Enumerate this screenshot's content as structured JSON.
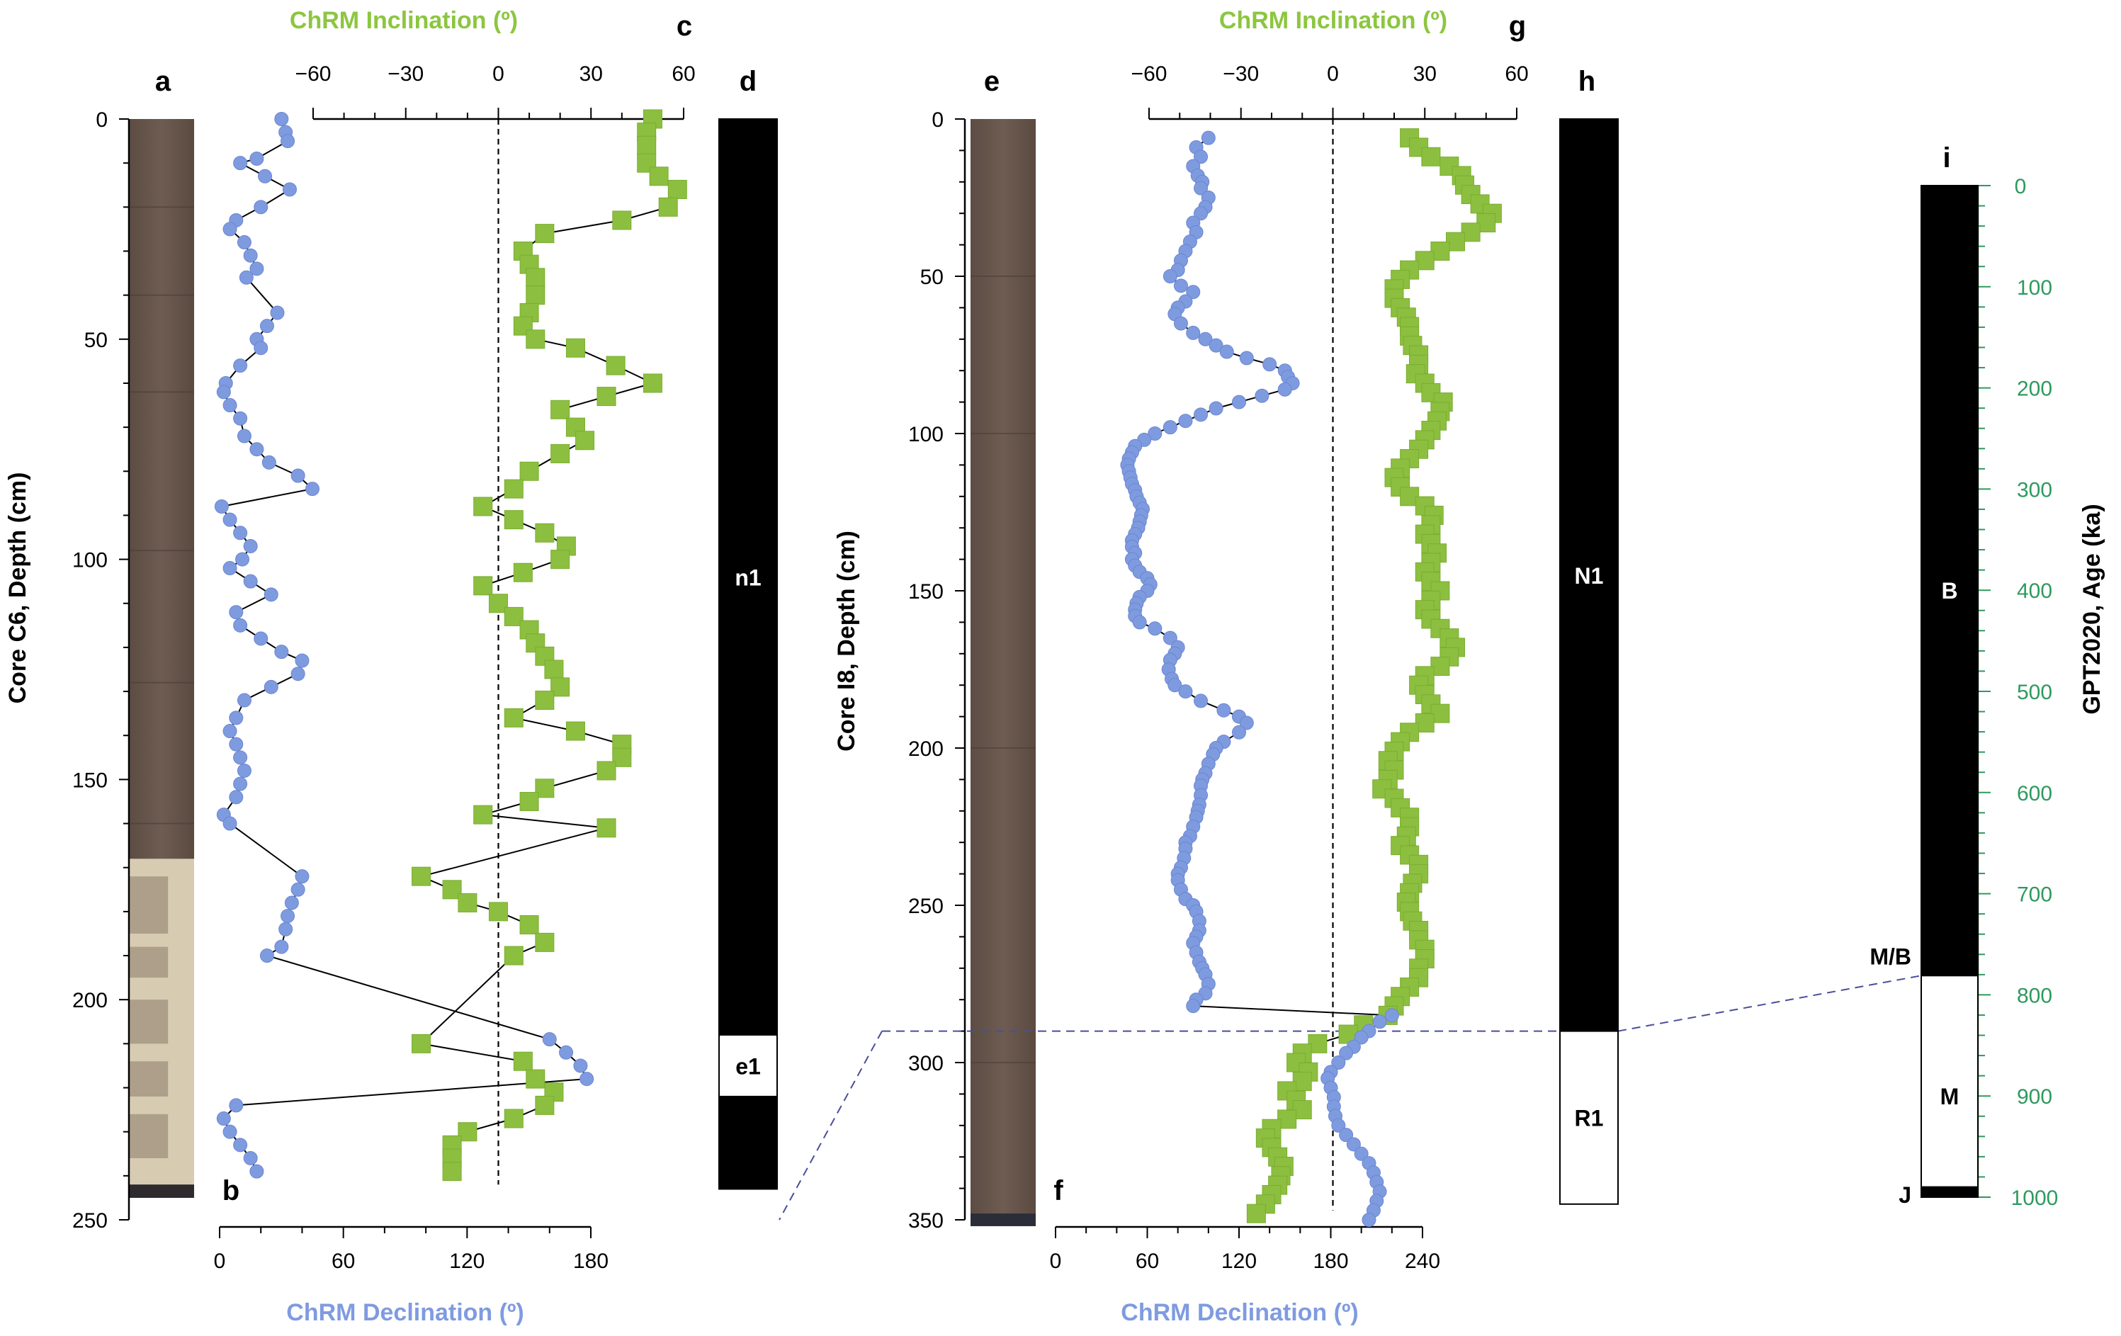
{
  "colors": {
    "declination": "#7f9be0",
    "inclination": "#8cbf3f",
    "inclination_title": "#8cc63f",
    "declination_title": "#7f9be0",
    "age_axis": "#2e9a5e",
    "polarity_normal": "#000000",
    "polarity_reversed": "#ffffff",
    "core_photo": "#6e5c52",
    "core_photo_light": "#d7ccb2",
    "tie_line": "#4a4e9a"
  },
  "panel_labels": {
    "a": "a",
    "b": "b",
    "c": "c",
    "d": "d",
    "e": "e",
    "f": "f",
    "g": "g",
    "h": "h",
    "i": "i"
  },
  "chart_data": [
    {
      "id": "core_c6",
      "type": "scatter",
      "ylabel": "Core C6, Depth (cm)",
      "ylim": [
        0,
        250
      ],
      "yticks": [
        0,
        50,
        100,
        150,
        200,
        250
      ],
      "declination": {
        "xlabel": "ChRM Declination (º)",
        "xlim": [
          0,
          180
        ],
        "xticks": [
          0,
          60,
          120,
          180
        ],
        "depth": [
          0,
          3,
          5,
          9,
          10,
          13,
          16,
          20,
          23,
          25,
          28,
          31,
          34,
          36,
          44,
          47,
          50,
          52,
          56,
          60,
          62,
          65,
          68,
          72,
          75,
          78,
          81,
          84,
          88,
          91,
          94,
          97,
          100,
          102,
          105,
          108,
          112,
          115,
          118,
          121,
          123,
          126,
          129,
          132,
          136,
          139,
          142,
          145,
          148,
          151,
          154,
          158,
          160,
          172,
          175,
          178,
          181,
          184,
          188,
          190,
          209,
          212,
          215,
          218,
          224,
          227,
          230,
          233,
          236,
          239
        ],
        "values": [
          30,
          32,
          33,
          18,
          10,
          22,
          34,
          20,
          8,
          5,
          12,
          15,
          18,
          13,
          28,
          23,
          18,
          20,
          10,
          3,
          2,
          5,
          10,
          12,
          18,
          24,
          38,
          45,
          1,
          5,
          10,
          15,
          11,
          5,
          15,
          25,
          8,
          10,
          20,
          30,
          40,
          38,
          25,
          12,
          8,
          5,
          8,
          10,
          12,
          10,
          8,
          2,
          5,
          40,
          38,
          35,
          33,
          32,
          30,
          23,
          160,
          168,
          175,
          178,
          8,
          2,
          5,
          10,
          15,
          18
        ]
      },
      "inclination": {
        "xlabel": "ChRM Inclination (º)",
        "xlim": [
          -60,
          60
        ],
        "xticks": [
          -60,
          -30,
          0,
          30,
          60
        ],
        "depth": [
          0,
          3,
          6,
          10,
          13,
          16,
          20,
          23,
          26,
          30,
          33,
          36,
          40,
          44,
          47,
          50,
          52,
          56,
          60,
          63,
          66,
          70,
          73,
          76,
          80,
          84,
          88,
          91,
          94,
          97,
          100,
          103,
          106,
          110,
          113,
          116,
          119,
          122,
          125,
          129,
          132,
          136,
          139,
          142,
          145,
          148,
          152,
          155,
          158,
          161,
          172,
          175,
          178,
          180,
          183,
          187,
          190,
          210,
          214,
          218,
          221,
          224,
          227,
          230,
          233,
          236,
          239
        ],
        "values": [
          50,
          48,
          48,
          48,
          52,
          58,
          55,
          40,
          15,
          8,
          10,
          12,
          12,
          10,
          8,
          12,
          25,
          38,
          50,
          35,
          20,
          25,
          28,
          20,
          10,
          5,
          -5,
          5,
          15,
          22,
          20,
          8,
          -5,
          0,
          5,
          10,
          12,
          15,
          18,
          20,
          15,
          5,
          25,
          40,
          40,
          35,
          15,
          10,
          -5,
          35,
          -25,
          -15,
          -10,
          0,
          10,
          15,
          5,
          -25,
          8,
          12,
          18,
          15,
          5,
          -10,
          -15,
          -15,
          -15
        ]
      },
      "polarity": [
        {
          "label": "n1",
          "from": 0,
          "to": 208,
          "state": "normal"
        },
        {
          "label": "e1",
          "from": 208,
          "to": 222,
          "state": "reversed"
        },
        {
          "label": "",
          "from": 222,
          "to": 243,
          "state": "normal"
        }
      ]
    },
    {
      "id": "core_i8",
      "type": "scatter",
      "ylabel": "Core I8, Depth (cm)",
      "ylim": [
        0,
        350
      ],
      "yticks": [
        0,
        50,
        100,
        150,
        200,
        250,
        300,
        350
      ],
      "declination": {
        "xlabel": "ChRM Declination (º)",
        "xlim": [
          0,
          240
        ],
        "xticks": [
          0,
          60,
          120,
          180,
          240
        ],
        "depth": [
          6,
          9,
          12,
          15,
          18,
          20,
          22,
          25,
          28,
          30,
          33,
          36,
          39,
          42,
          45,
          48,
          50,
          53,
          55,
          58,
          60,
          62,
          65,
          68,
          70,
          72,
          74,
          76,
          78,
          80,
          82,
          84,
          86,
          88,
          90,
          92,
          94,
          96,
          98,
          100,
          102,
          104,
          106,
          108,
          110,
          112,
          114,
          116,
          118,
          120,
          122,
          124,
          126,
          128,
          130,
          132,
          134,
          136,
          138,
          140,
          142,
          144,
          146,
          148,
          150,
          152,
          154,
          156,
          158,
          160,
          162,
          165,
          168,
          170,
          172,
          175,
          178,
          180,
          182,
          185,
          188,
          190,
          192,
          195,
          198,
          200,
          202,
          205,
          208,
          210,
          212,
          215,
          218,
          220,
          222,
          225,
          228,
          230,
          232,
          235,
          238,
          240,
          242,
          245,
          248,
          250,
          252,
          255,
          258,
          260,
          262,
          265,
          268,
          270,
          272,
          275,
          278,
          280,
          282
        ],
        "values": [
          100,
          92,
          95,
          90,
          93,
          96,
          95,
          100,
          98,
          95,
          90,
          92,
          88,
          85,
          82,
          80,
          75,
          82,
          90,
          85,
          80,
          78,
          82,
          90,
          98,
          105,
          112,
          125,
          140,
          150,
          152,
          155,
          150,
          135,
          120,
          105,
          95,
          85,
          75,
          65,
          58,
          52,
          50,
          48,
          47,
          48,
          49,
          50,
          52,
          53,
          55,
          57,
          56,
          55,
          54,
          52,
          50,
          50,
          52,
          50,
          52,
          55,
          60,
          62,
          60,
          55,
          53,
          52,
          52,
          55,
          65,
          75,
          80,
          78,
          75,
          74,
          76,
          78,
          85,
          95,
          110,
          120,
          125,
          120,
          110,
          105,
          103,
          100,
          98,
          96,
          95,
          95,
          94,
          93,
          92,
          90,
          88,
          85,
          85,
          84,
          82,
          80,
          80,
          82,
          85,
          90,
          92,
          94,
          94,
          92,
          90,
          92,
          94,
          96,
          98,
          100,
          98,
          92,
          90
        ]
      },
      "inclination": {
        "xlabel": "ChRM Inclination (º)",
        "xlim": [
          -60,
          60
        ],
        "xticks": [
          -60,
          -30,
          0,
          30,
          60
        ],
        "depth": [
          6,
          9,
          12,
          15,
          18,
          21,
          24,
          27,
          30,
          33,
          36,
          39,
          42,
          45,
          48,
          51,
          54,
          57,
          60,
          63,
          66,
          69,
          72,
          75,
          78,
          81,
          84,
          87,
          90,
          93,
          96,
          99,
          102,
          105,
          108,
          111,
          114,
          117,
          120,
          123,
          126,
          129,
          132,
          135,
          138,
          141,
          144,
          147,
          150,
          153,
          156,
          159,
          162,
          165,
          168,
          171,
          174,
          177,
          180,
          183,
          186,
          189,
          192,
          195,
          198,
          201,
          204,
          207,
          210,
          213,
          216,
          219,
          222,
          225,
          228,
          231,
          234,
          237,
          240,
          243,
          246,
          249,
          252,
          255,
          258,
          261,
          264,
          267,
          270,
          273,
          276,
          279,
          282,
          285,
          288,
          291,
          294,
          297,
          300,
          303,
          306,
          309,
          312,
          315,
          318,
          321,
          324,
          327,
          330,
          333,
          336,
          339,
          342,
          345,
          348
        ],
        "values": [
          25,
          28,
          32,
          38,
          42,
          43,
          45,
          48,
          52,
          50,
          45,
          40,
          35,
          30,
          25,
          22,
          20,
          20,
          22,
          24,
          25,
          25,
          26,
          28,
          28,
          27,
          30,
          32,
          36,
          35,
          34,
          32,
          30,
          28,
          25,
          22,
          20,
          22,
          25,
          30,
          33,
          32,
          30,
          32,
          34,
          32,
          30,
          32,
          35,
          32,
          30,
          32,
          35,
          38,
          40,
          38,
          35,
          30,
          28,
          30,
          32,
          35,
          30,
          25,
          22,
          20,
          18,
          20,
          18,
          16,
          20,
          22,
          25,
          25,
          24,
          22,
          25,
          28,
          28,
          26,
          25,
          24,
          25,
          26,
          28,
          28,
          30,
          30,
          28,
          28,
          25,
          22,
          20,
          18,
          10,
          5,
          -5,
          -10,
          -12,
          -8,
          -10,
          -15,
          -12,
          -10,
          -15,
          -20,
          -22,
          -20,
          -18,
          -16,
          -17,
          -18,
          -20,
          -22,
          -25
        ]
      },
      "declination_lower": {
        "depth": [
          285,
          287,
          290,
          292,
          295,
          297,
          300,
          303,
          305,
          308,
          311,
          314,
          317,
          320,
          323,
          326,
          329,
          332,
          335,
          338,
          341,
          344,
          347,
          350
        ],
        "values": [
          220,
          212,
          205,
          200,
          195,
          190,
          185,
          180,
          178,
          180,
          182,
          182,
          183,
          185,
          190,
          195,
          200,
          205,
          208,
          210,
          212,
          210,
          208,
          205
        ]
      },
      "polarity": [
        {
          "label": "N1",
          "from": 0,
          "to": 290,
          "state": "normal"
        },
        {
          "label": "R1",
          "from": 290,
          "to": 345,
          "state": "reversed"
        }
      ]
    },
    {
      "id": "gpts",
      "type": "table",
      "ylabel": "GPT2020, Age (ka)",
      "ylim": [
        0,
        1000
      ],
      "yticks": [
        0,
        100,
        200,
        300,
        400,
        500,
        600,
        700,
        800,
        900,
        1000
      ],
      "chrons": [
        {
          "label": "B",
          "from": 0,
          "to": 781,
          "state": "normal"
        },
        {
          "label": "M",
          "from": 781,
          "to": 990,
          "state": "reversed"
        },
        {
          "label": "J",
          "from": 990,
          "to": 1000,
          "state": "normal"
        }
      ],
      "boundary_label": "M/B"
    }
  ]
}
